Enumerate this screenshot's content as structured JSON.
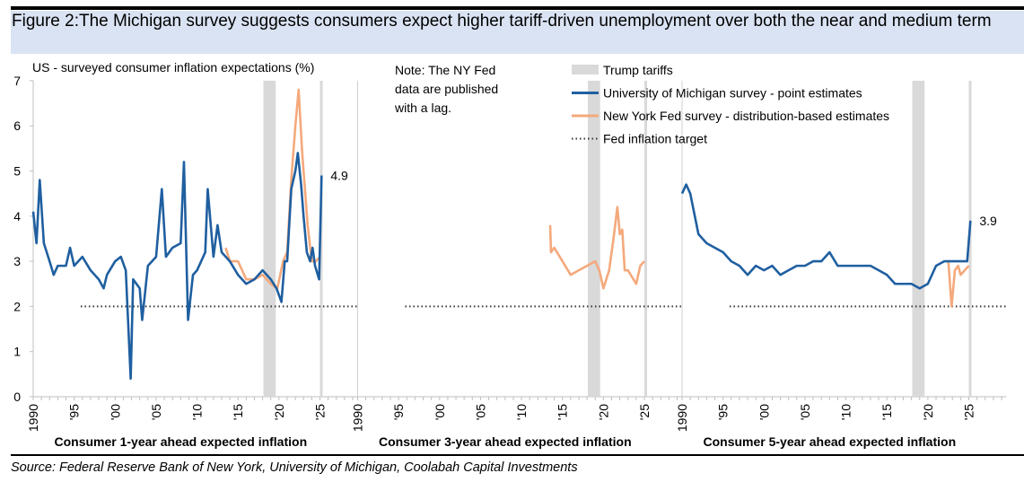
{
  "title": "Figure 2:The Michigan survey suggests consumers expect higher tariff-driven unemployment over both the near and medium term",
  "source": "Source: Federal Reserve Bank of New York, University of Michigan, Coolabah Capital Investments",
  "chart_data": {
    "type": "line",
    "ylabel": "US - surveyed consumer inflation expectations (%)",
    "ylim": [
      0,
      7
    ],
    "yticks": [
      "0",
      "1",
      "2",
      "3",
      "4",
      "5",
      "6",
      "7"
    ],
    "xticks": [
      "1990",
      "'95",
      "'00",
      "'05",
      "'10",
      "'15",
      "'20",
      "'25"
    ],
    "note": "Note: The NY Fed data are published with a lag.",
    "legend": {
      "position": "top-right",
      "items": [
        "Trump tariffs",
        "University of Michigan survey - point estimates",
        "New York Fed survey - distribution-based estimates",
        "Fed inflation target"
      ]
    },
    "colors": {
      "michigan": "#1f5fa0",
      "nyfed": "#f4a97c",
      "tariffs": "#d9d9d9",
      "target": "#333333"
    },
    "fed_target": 2,
    "tariff_periods": [
      [
        2018.1,
        2019.6
      ],
      [
        2025.0,
        2025.3
      ]
    ],
    "panels": [
      {
        "label": "Consumer 1-year ahead expected inflation",
        "last_label": "4.9",
        "michigan": [
          [
            1990,
            4.1
          ],
          [
            1990.4,
            3.4
          ],
          [
            1990.8,
            4.8
          ],
          [
            1991.3,
            3.4
          ],
          [
            1992,
            3.0
          ],
          [
            1992.5,
            2.7
          ],
          [
            1993,
            2.9
          ],
          [
            1994,
            2.9
          ],
          [
            1994.5,
            3.3
          ],
          [
            1995,
            2.9
          ],
          [
            1996,
            3.1
          ],
          [
            1997,
            2.8
          ],
          [
            1998,
            2.6
          ],
          [
            1998.6,
            2.4
          ],
          [
            1999,
            2.7
          ],
          [
            2000,
            3.0
          ],
          [
            2000.7,
            3.1
          ],
          [
            2001.3,
            2.8
          ],
          [
            2001.9,
            0.4
          ],
          [
            2002.2,
            2.6
          ],
          [
            2003,
            2.4
          ],
          [
            2003.3,
            1.7
          ],
          [
            2004,
            2.9
          ],
          [
            2005,
            3.1
          ],
          [
            2005.7,
            4.6
          ],
          [
            2006.2,
            3.1
          ],
          [
            2007,
            3.3
          ],
          [
            2008,
            3.4
          ],
          [
            2008.4,
            5.2
          ],
          [
            2008.9,
            1.7
          ],
          [
            2009.5,
            2.7
          ],
          [
            2010,
            2.8
          ],
          [
            2011,
            3.2
          ],
          [
            2011.3,
            4.6
          ],
          [
            2012,
            3.1
          ],
          [
            2012.5,
            3.8
          ],
          [
            2013,
            3.2
          ],
          [
            2014,
            3.0
          ],
          [
            2015,
            2.7
          ],
          [
            2016,
            2.5
          ],
          [
            2017,
            2.6
          ],
          [
            2018,
            2.8
          ],
          [
            2019,
            2.6
          ],
          [
            2019.7,
            2.4
          ],
          [
            2020.3,
            2.1
          ],
          [
            2020.7,
            3.0
          ],
          [
            2021,
            3.0
          ],
          [
            2021.5,
            4.6
          ],
          [
            2022,
            5.0
          ],
          [
            2022.3,
            5.4
          ],
          [
            2022.7,
            4.7
          ],
          [
            2023,
            4.0
          ],
          [
            2023.4,
            3.2
          ],
          [
            2023.8,
            3.0
          ],
          [
            2024.1,
            3.3
          ],
          [
            2024.4,
            2.9
          ],
          [
            2024.9,
            2.6
          ],
          [
            2025.2,
            4.9
          ]
        ],
        "nyfed": [
          [
            2013.5,
            3.3
          ],
          [
            2014,
            3.0
          ],
          [
            2015,
            3.0
          ],
          [
            2016,
            2.6
          ],
          [
            2017,
            2.6
          ],
          [
            2018,
            2.7
          ],
          [
            2019,
            2.5
          ],
          [
            2019.8,
            2.4
          ],
          [
            2020.5,
            3.0
          ],
          [
            2021,
            3.2
          ],
          [
            2021.5,
            4.8
          ],
          [
            2022,
            6.0
          ],
          [
            2022.4,
            6.8
          ],
          [
            2022.8,
            5.5
          ],
          [
            2023,
            5.0
          ],
          [
            2023.5,
            3.8
          ],
          [
            2024,
            3.0
          ],
          [
            2024.5,
            3.0
          ],
          [
            2025,
            3.1
          ]
        ]
      },
      {
        "label": "Consumer 3-year ahead expected inflation",
        "michigan": [],
        "nyfed": [
          [
            2013.5,
            3.8
          ],
          [
            2013.6,
            3.2
          ],
          [
            2014,
            3.3
          ],
          [
            2015,
            3.0
          ],
          [
            2016,
            2.7
          ],
          [
            2017,
            2.8
          ],
          [
            2018,
            2.9
          ],
          [
            2019,
            3.0
          ],
          [
            2019.5,
            2.8
          ],
          [
            2020,
            2.4
          ],
          [
            2020.7,
            2.8
          ],
          [
            2021.3,
            3.6
          ],
          [
            2021.7,
            4.2
          ],
          [
            2022,
            3.6
          ],
          [
            2022.3,
            3.7
          ],
          [
            2022.6,
            2.8
          ],
          [
            2023,
            2.8
          ],
          [
            2024,
            2.5
          ],
          [
            2024.5,
            2.9
          ],
          [
            2025,
            3.0
          ]
        ]
      },
      {
        "label": "Consumer 5-year ahead expected inflation",
        "last_label": "3.9",
        "michigan": [
          [
            1990,
            4.5
          ],
          [
            1990.5,
            4.7
          ],
          [
            1991,
            4.5
          ],
          [
            1992,
            3.6
          ],
          [
            1993,
            3.4
          ],
          [
            1994,
            3.3
          ],
          [
            1995,
            3.2
          ],
          [
            1996,
            3.0
          ],
          [
            1997,
            2.9
          ],
          [
            1998,
            2.7
          ],
          [
            1999,
            2.9
          ],
          [
            2000,
            2.8
          ],
          [
            2001,
            2.9
          ],
          [
            2002,
            2.7
          ],
          [
            2003,
            2.8
          ],
          [
            2004,
            2.9
          ],
          [
            2005,
            2.9
          ],
          [
            2006,
            3.0
          ],
          [
            2007,
            3.0
          ],
          [
            2008,
            3.2
          ],
          [
            2009,
            2.9
          ],
          [
            2010,
            2.9
          ],
          [
            2011,
            2.9
          ],
          [
            2012,
            2.9
          ],
          [
            2013,
            2.9
          ],
          [
            2014,
            2.8
          ],
          [
            2015,
            2.7
          ],
          [
            2016,
            2.5
          ],
          [
            2017,
            2.5
          ],
          [
            2018,
            2.5
          ],
          [
            2019,
            2.4
          ],
          [
            2020,
            2.5
          ],
          [
            2021,
            2.9
          ],
          [
            2022,
            3.0
          ],
          [
            2023,
            3.0
          ],
          [
            2024,
            3.0
          ],
          [
            2024.8,
            3.0
          ],
          [
            2025.2,
            3.9
          ]
        ],
        "nyfed": [
          [
            2022.5,
            3.0
          ],
          [
            2022.9,
            2.0
          ],
          [
            2023.3,
            2.8
          ],
          [
            2023.7,
            2.9
          ],
          [
            2024,
            2.7
          ],
          [
            2024.5,
            2.8
          ],
          [
            2025,
            2.9
          ]
        ]
      }
    ]
  }
}
